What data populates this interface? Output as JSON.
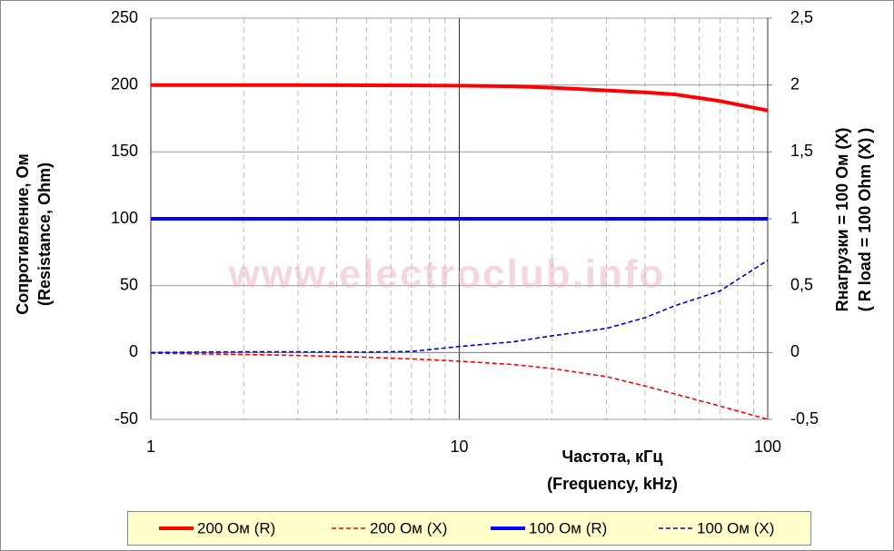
{
  "chart_data": {
    "type": "line",
    "watermark": "www.electroclub.info",
    "x_label": [
      "Частота, кГц",
      "(Frequency, kHz)"
    ],
    "y_label": [
      "Сопротивление, Ом",
      "(Resistance, Ohm)"
    ],
    "y2_label": [
      "Rнагрузки = 100 Ом (X)",
      "( R load = 100 Ohm (X) )"
    ],
    "x": [
      1,
      2,
      3,
      5,
      7,
      10,
      15,
      20,
      30,
      40,
      50,
      70,
      100
    ],
    "xlim": [
      1,
      100
    ],
    "xticks": [
      1,
      10,
      100
    ],
    "xscale": "log",
    "ylim": [
      -50,
      250
    ],
    "yticks": [
      -50,
      0,
      50,
      100,
      150,
      200,
      250
    ],
    "y2lim": [
      -0.5,
      2.5
    ],
    "y2ticks": [
      {
        "value": -0.5,
        "label": "-0,5"
      },
      0,
      {
        "value": 0.5,
        "label": "0,5"
      },
      1,
      {
        "value": 1.5,
        "label": "1,5"
      },
      2,
      {
        "value": 2.5,
        "label": "2,5"
      }
    ],
    "grid": true,
    "legend": "bottom",
    "series": [
      {
        "name": "200 Ом (R)",
        "color": "#ff0000",
        "style": "solid",
        "values": [
          200,
          200,
          200,
          199.8,
          199.7,
          199.5,
          199,
          198,
          196,
          194.5,
          193,
          188,
          181
        ]
      },
      {
        "name": "200 Ом (X)",
        "color": "#ff0000",
        "style": "dashed",
        "values": [
          -0.5,
          -1.5,
          -2.2,
          -3.5,
          -4.8,
          -6.5,
          -9,
          -12,
          -18,
          -25,
          -31,
          -40,
          -50
        ]
      },
      {
        "name": "100 Ом (R)",
        "color": "#0000ff",
        "style": "solid",
        "values": [
          100,
          100,
          100,
          100,
          100,
          100,
          100,
          100,
          100,
          100,
          100,
          100,
          100
        ]
      },
      {
        "name": "100 Ом (X)",
        "color": "#0000cc",
        "style": "dashed",
        "values": [
          0,
          0.5,
          0.5,
          0.3,
          0.8,
          4.5,
          8,
          12.5,
          18,
          26,
          35,
          46,
          69
        ]
      }
    ]
  }
}
